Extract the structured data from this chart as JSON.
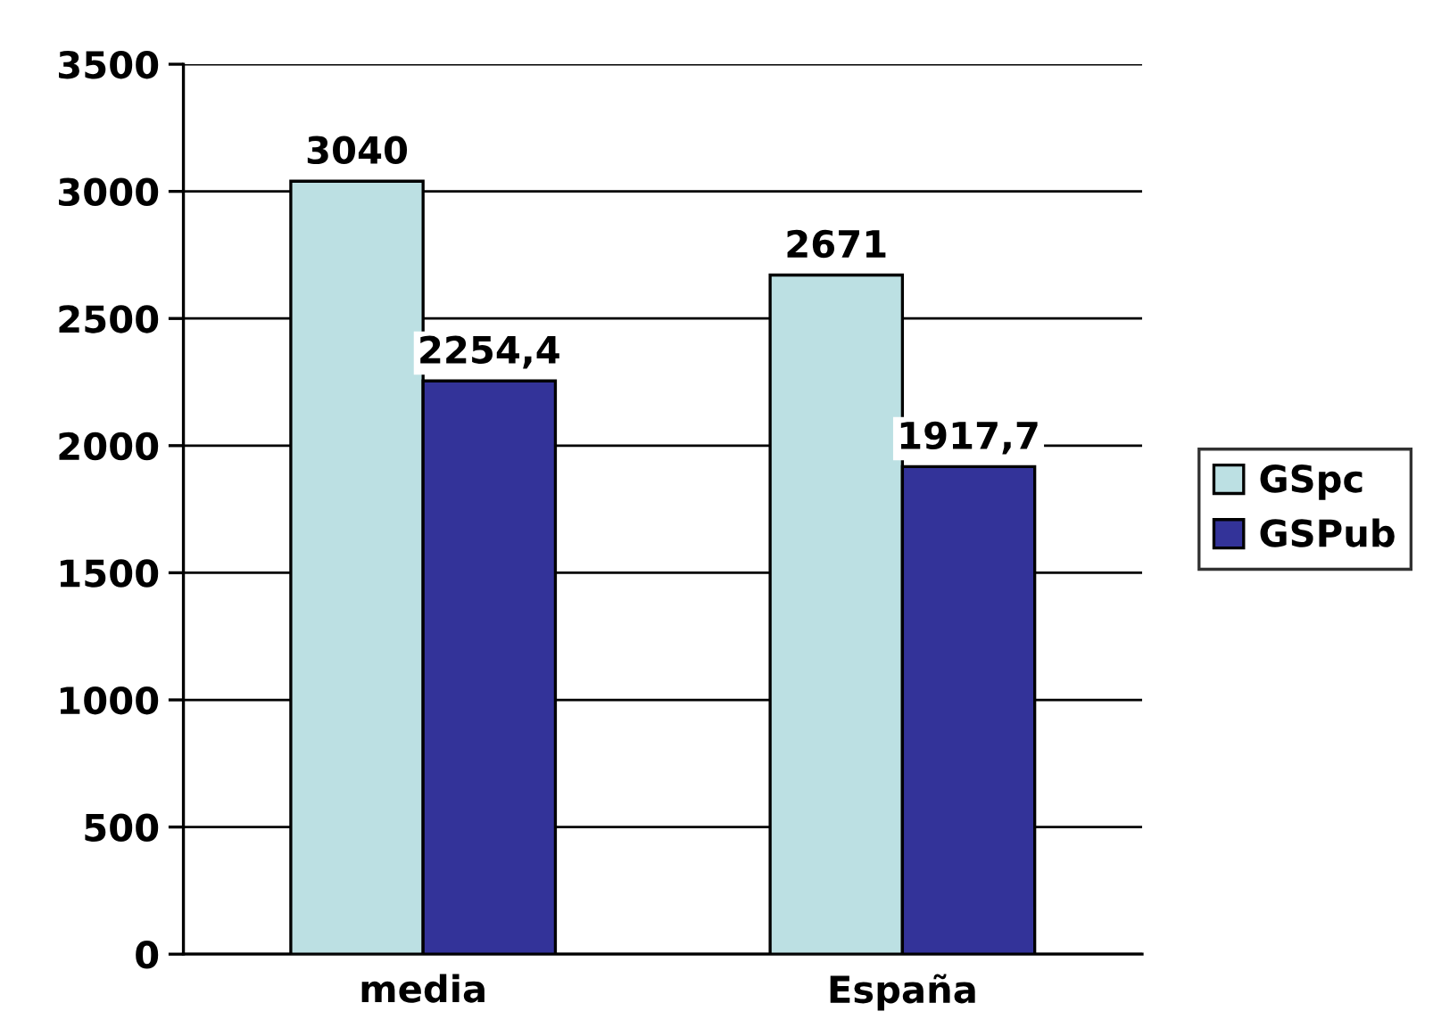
{
  "chart_data": {
    "type": "bar",
    "categories": [
      "media",
      "España"
    ],
    "series": [
      {
        "name": "GSpc",
        "color": "#bce0e3",
        "values": [
          3040,
          2671
        ],
        "value_labels": [
          "3040",
          "2671"
        ]
      },
      {
        "name": "GSPub",
        "color": "#333399",
        "values": [
          2254.4,
          1917.7
        ],
        "value_labels": [
          "2254,4",
          "1917,7"
        ]
      }
    ],
    "ylim": [
      0,
      3500
    ],
    "yticks": [
      0,
      500,
      1000,
      1500,
      2000,
      2500,
      3000,
      3500
    ],
    "grid": "y",
    "legend": "right"
  }
}
